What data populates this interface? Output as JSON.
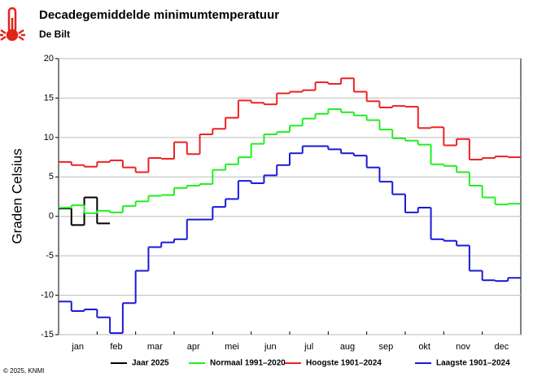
{
  "chart_data": {
    "type": "step",
    "title": "Decadegemiddelde minimumtemperatuur",
    "subtitle": "De Bilt",
    "y_label": "Graden Celsius",
    "footer": "© 2025, KNMI",
    "categories": [
      "jan",
      "feb",
      "mar",
      "apr",
      "mei",
      "jun",
      "jul",
      "aug",
      "sep",
      "okt",
      "nov",
      "dec"
    ],
    "ylim": [
      -15,
      20
    ],
    "yticks": [
      -15,
      -10,
      -5,
      0,
      5,
      10,
      15,
      20
    ],
    "grid": true,
    "series": [
      {
        "name": "Jaar 2025",
        "color": "#000000",
        "values": [
          [
            1.0,
            -1.1,
            2.4
          ],
          [
            -0.9,
            null,
            null
          ],
          [
            null,
            null,
            null
          ],
          [
            null,
            null,
            null
          ],
          [
            null,
            null,
            null
          ],
          [
            null,
            null,
            null
          ],
          [
            null,
            null,
            null
          ],
          [
            null,
            null,
            null
          ],
          [
            null,
            null,
            null
          ],
          [
            null,
            null,
            null
          ],
          [
            null,
            null,
            null
          ],
          [
            null,
            null,
            null
          ]
        ]
      },
      {
        "name": "Normaal 1991–2020",
        "color": "#22ee22",
        "values": [
          [
            1.1,
            1.4,
            0.4
          ],
          [
            0.7,
            0.5,
            1.3
          ],
          [
            1.9,
            2.6,
            2.7
          ],
          [
            3.6,
            3.9,
            4.1
          ],
          [
            5.9,
            6.6,
            7.5
          ],
          [
            9.2,
            10.4,
            10.7
          ],
          [
            11.5,
            12.4,
            13.0
          ],
          [
            13.6,
            13.2,
            12.8
          ],
          [
            12.2,
            11.0,
            9.9
          ],
          [
            9.6,
            9.1,
            6.6
          ],
          [
            6.4,
            5.6,
            3.9
          ],
          [
            2.4,
            1.5,
            1.6
          ]
        ]
      },
      {
        "name": "Hoogste 1901–2024",
        "color": "#ee2222",
        "values": [
          [
            6.9,
            6.5,
            6.3
          ],
          [
            6.9,
            7.1,
            6.2
          ],
          [
            5.6,
            7.4,
            7.3
          ],
          [
            9.4,
            7.9,
            10.4
          ],
          [
            11.1,
            12.5,
            14.7
          ],
          [
            14.4,
            14.2,
            15.6
          ],
          [
            15.8,
            16.0,
            17.0
          ],
          [
            16.8,
            17.5,
            15.8
          ],
          [
            14.6,
            13.8,
            14.0
          ],
          [
            13.9,
            11.2,
            11.3
          ],
          [
            9.0,
            9.8,
            7.2
          ],
          [
            7.4,
            7.6,
            7.5
          ]
        ]
      },
      {
        "name": "Laagste 1901–2024",
        "color": "#1a1ad8",
        "values": [
          [
            -10.8,
            -12.0,
            -11.8
          ],
          [
            -12.8,
            -14.8,
            -11.0
          ],
          [
            -6.9,
            -3.9,
            -3.3
          ],
          [
            -2.9,
            -0.4,
            -0.4
          ],
          [
            1.2,
            2.2,
            4.5
          ],
          [
            4.2,
            5.2,
            6.5
          ],
          [
            8.0,
            8.9,
            8.9
          ],
          [
            8.5,
            8.0,
            7.7
          ],
          [
            6.2,
            4.4,
            2.8
          ],
          [
            0.5,
            1.1,
            -2.9
          ],
          [
            -3.1,
            -3.7,
            -6.9
          ],
          [
            -8.1,
            -8.2,
            -7.8
          ]
        ]
      }
    ]
  }
}
